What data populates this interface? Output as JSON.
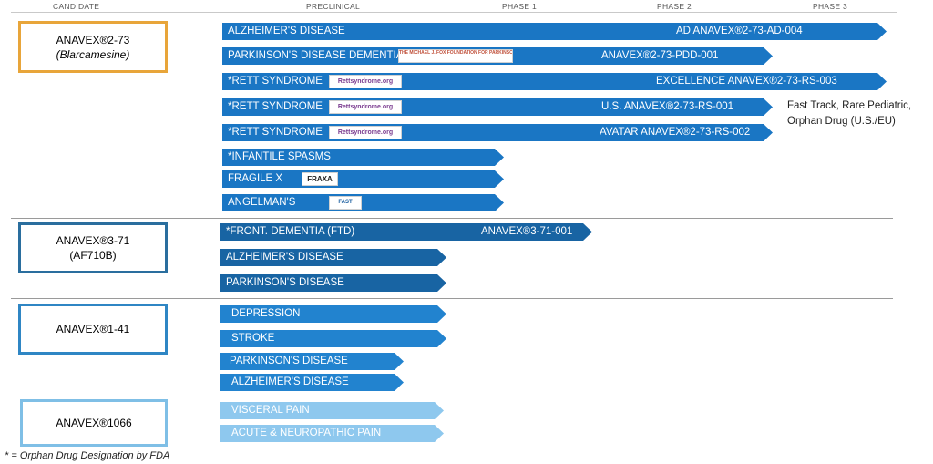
{
  "header": {
    "candidate": "CANDIDATE",
    "preclinical": "PRECLINICAL",
    "phase1": "PHASE 1",
    "phase2": "PHASE 2",
    "phase3": "PHASE 3"
  },
  "candidates": [
    {
      "name": "ANAVEX®2-73",
      "sub": "(Blarcamesine)",
      "border": "#e8a53a"
    },
    {
      "name": "ANAVEX®3-71",
      "sub": "(AF710B)",
      "border": "#2a6e9e"
    },
    {
      "name": "ANAVEX®1-41",
      "sub": "",
      "border": "#2f86c4"
    },
    {
      "name": "ANAVEX®1066",
      "sub": "",
      "border": "#7fbfe6"
    }
  ],
  "colors": {
    "blue_2_73": "#1a76c4",
    "blue_3_71": "#1864a3",
    "blue_1_41": "#2283cf",
    "blue_1066": "#8ec8ee",
    "rett_logo_text": "#7a3b8f"
  },
  "bars": [
    {
      "label": "ALZHEIMER'S DISEASE",
      "trial": "AD ANAVEX®2-73-AD-004",
      "logo": ""
    },
    {
      "label": "PARKINSON'S DISEASE DEMENTIA",
      "trial": "ANAVEX®2-73-PDD-001",
      "logo": "THE MICHAEL J. FOX FOUNDATION FOR PARKINSON'S RESEARCH"
    },
    {
      "label": "*RETT SYNDROME",
      "trial": "EXCELLENCE ANAVEX®2-73-RS-003",
      "logo": "Rettsyndrome.org"
    },
    {
      "label": "*RETT SYNDROME",
      "trial": "U.S. ANAVEX®2-73-RS-001",
      "logo": "Rettsyndrome.org"
    },
    {
      "label": "*RETT SYNDROME",
      "trial": "AVATAR ANAVEX®2-73-RS-002",
      "logo": "Rettsyndrome.org"
    },
    {
      "label": "*INFANTILE SPASMS",
      "trial": "",
      "logo": ""
    },
    {
      "label": "FRAGILE X",
      "trial": "",
      "logo": "FRAXA"
    },
    {
      "label": "ANGELMAN'S",
      "trial": "",
      "logo": "FAST"
    },
    {
      "label": "*FRONT. DEMENTIA (FTD)",
      "trial": "ANAVEX®3-71-001",
      "logo": ""
    },
    {
      "label": "ALZHEIMER'S DISEASE",
      "trial": "",
      "logo": ""
    },
    {
      "label": "PARKINSON'S DISEASE",
      "trial": "",
      "logo": ""
    },
    {
      "label": "DEPRESSION",
      "trial": "",
      "logo": ""
    },
    {
      "label": "STROKE",
      "trial": "",
      "logo": ""
    },
    {
      "label": "PARKINSON'S DISEASE",
      "trial": "",
      "logo": ""
    },
    {
      "label": "ALZHEIMER'S DISEASE",
      "trial": "",
      "logo": ""
    },
    {
      "label": "VISCERAL PAIN",
      "trial": "",
      "logo": ""
    },
    {
      "label": "ACUTE & NEUROPATHIC PAIN",
      "trial": "",
      "logo": ""
    }
  ],
  "note": {
    "line1": "Fast Track, Rare Pediatric,",
    "line2": "Orphan Drug (U.S./EU)"
  },
  "footnote": "* = Orphan Drug Designation by FDA"
}
